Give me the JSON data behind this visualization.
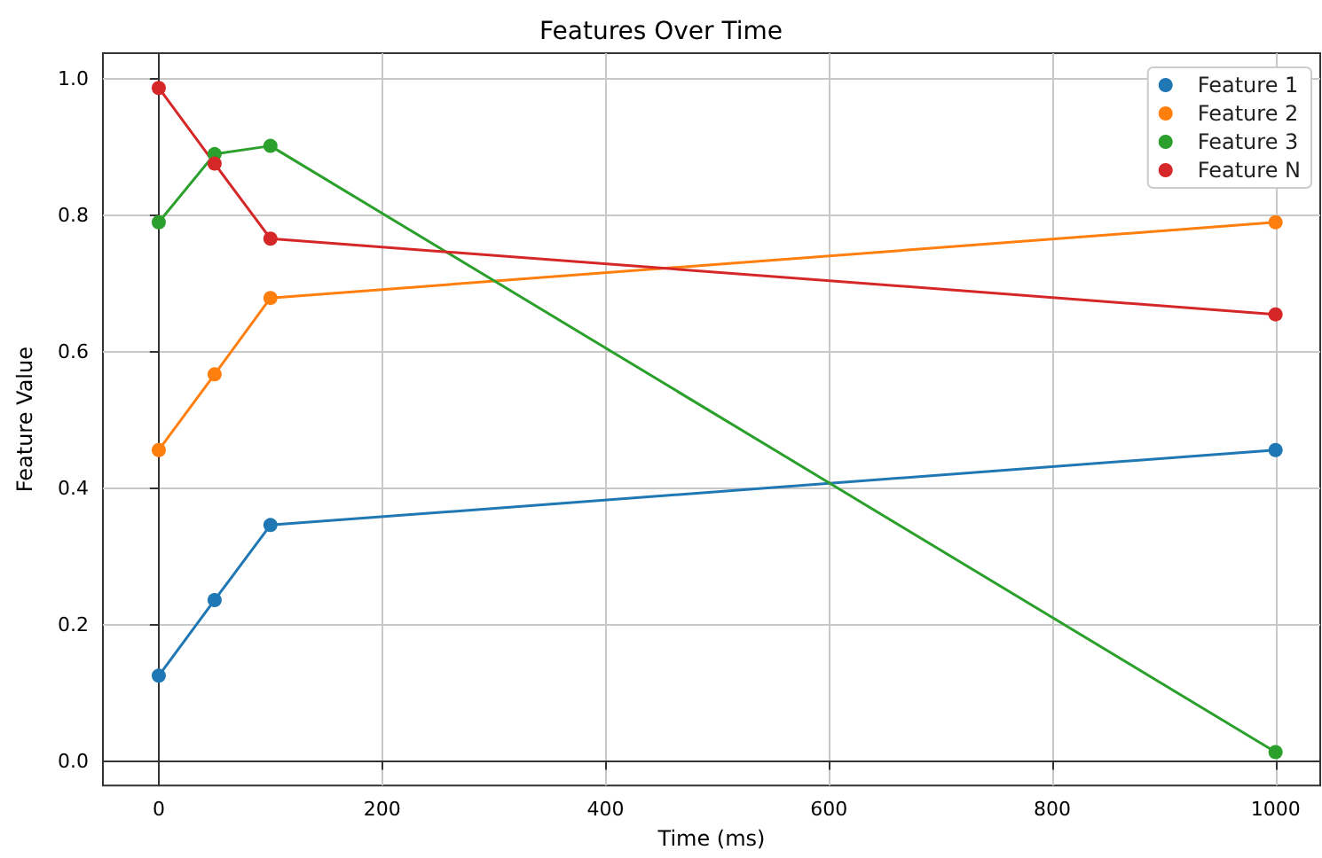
{
  "chart_data": {
    "type": "line",
    "title": "Features Over Time",
    "xlabel": "Time (ms)",
    "ylabel": "Feature Value",
    "x": [
      0,
      50,
      100,
      1000
    ],
    "series": [
      {
        "name": "Feature 1",
        "color": "#1f77b4",
        "values": [
          0.125,
          0.236,
          0.346,
          0.456
        ]
      },
      {
        "name": "Feature 2",
        "color": "#ff7f0e",
        "values": [
          0.456,
          0.567,
          0.679,
          0.79
        ]
      },
      {
        "name": "Feature 3",
        "color": "#2ca02c",
        "values": [
          0.79,
          0.89,
          0.902,
          0.013
        ]
      },
      {
        "name": "Feature N",
        "color": "#d62728",
        "values": [
          0.987,
          0.876,
          0.766,
          0.655
        ]
      }
    ],
    "xlim": [
      -50,
      1040
    ],
    "xticks": [
      0,
      200,
      400,
      600,
      800,
      1000
    ],
    "ylim": [
      -0.036,
      1.038
    ],
    "yticks": [
      {
        "value": 0,
        "label": "0.0"
      },
      {
        "value": 0.2,
        "label": "0.2"
      },
      {
        "value": 0.4,
        "label": "0.4"
      },
      {
        "value": 0.6,
        "label": "0.6"
      },
      {
        "value": 0.8,
        "label": "0.8"
      },
      {
        "value": 1,
        "label": "1.0"
      }
    ],
    "grid": true,
    "legend": "top right",
    "marker": "circle",
    "line_style": "solid"
  }
}
